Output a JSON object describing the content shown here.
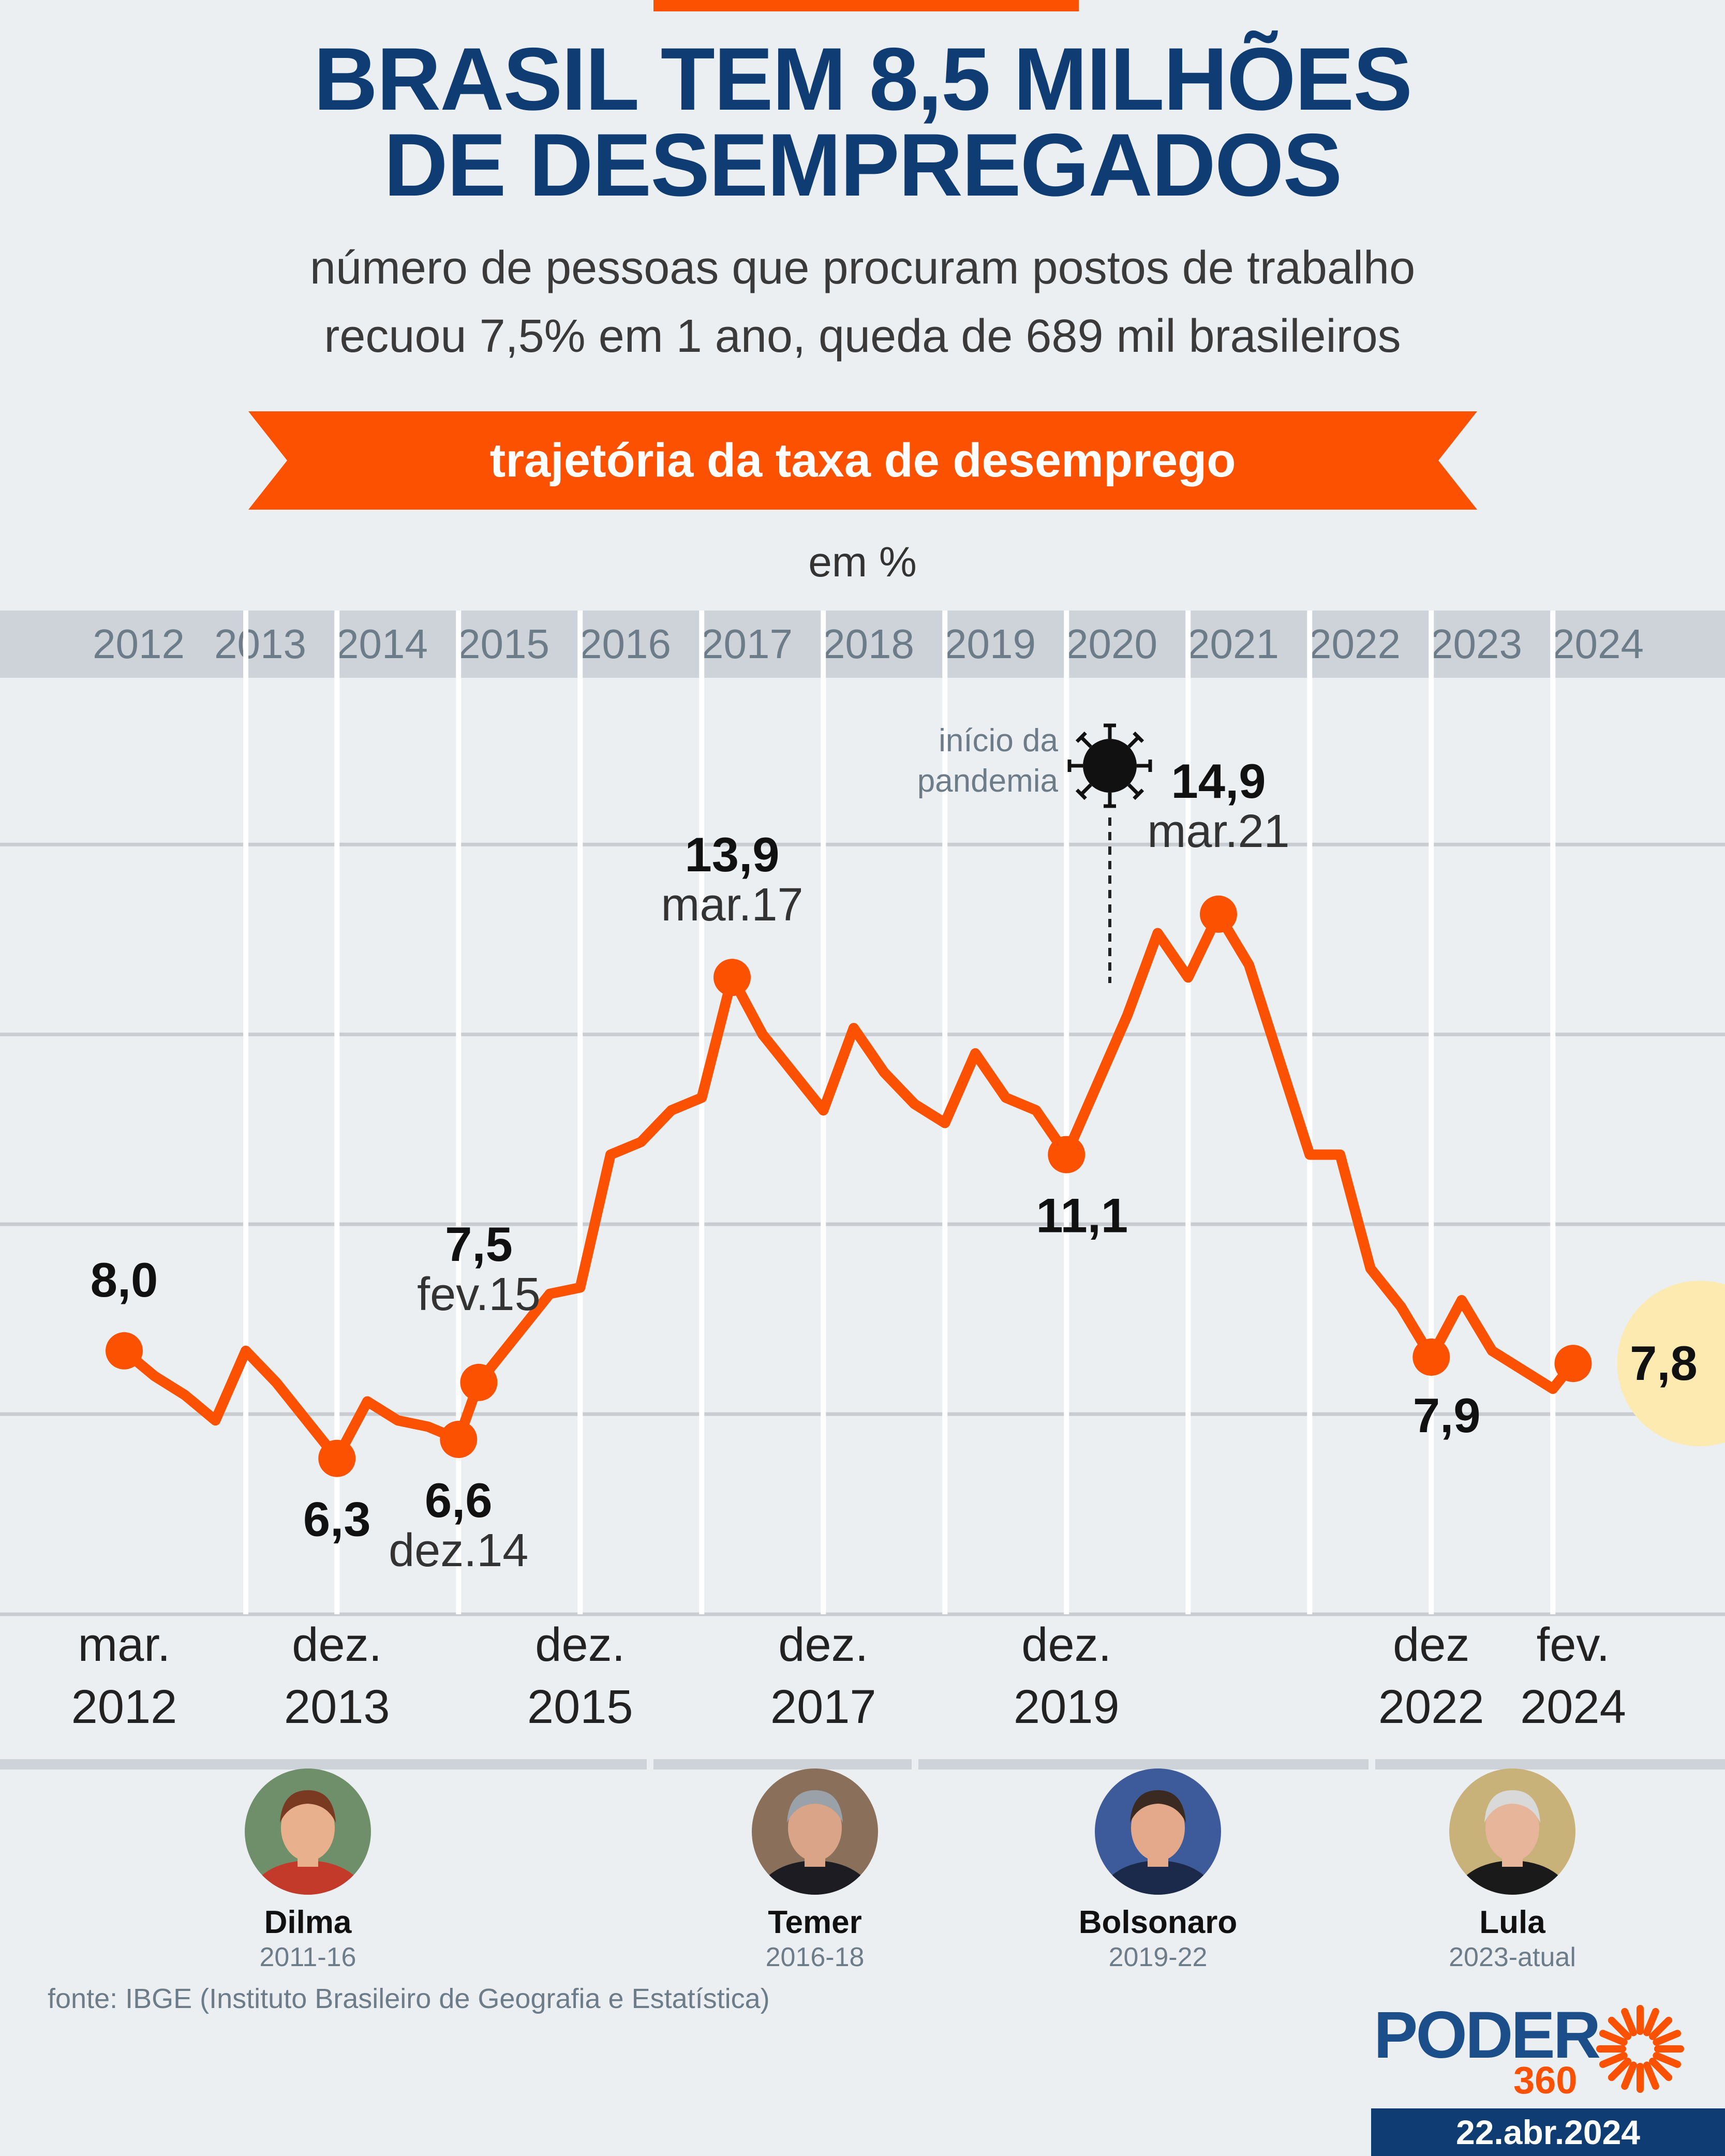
{
  "header": {
    "title_line1": "BRASIL TEM 8,5 MILHÕES",
    "title_line2": "DE DESEMPREGADOS",
    "subtitle_line1": "número de pessoas que procuram postos de trabalho",
    "subtitle_line2": "recuou 7,5% em 1 ano, queda de 689 mil brasileiros",
    "banner": "trajetória da taxa de desemprego",
    "unit": "em %"
  },
  "chart_data": {
    "type": "line",
    "title": "trajetória da taxa de desemprego",
    "ylabel": "em %",
    "ylim": [
      4,
      17
    ],
    "gridlines": [
      7,
      10,
      13,
      16
    ],
    "line_color": "#fc5100",
    "year_labels": [
      "2012",
      "2013",
      "2014",
      "2015",
      "2016",
      "2017",
      "2018",
      "2019",
      "2020",
      "2021",
      "2022",
      "2023",
      "2024"
    ],
    "x_axis_labels": [
      {
        "line1": "mar.",
        "line2": "2012"
      },
      {
        "line1": "dez.",
        "line2": "2013"
      },
      {
        "line1": "dez.",
        "line2": "2015"
      },
      {
        "line1": "dez.",
        "line2": "2017"
      },
      {
        "line1": "dez.",
        "line2": "2019"
      },
      {
        "line1": "dez",
        "line2": "2022"
      },
      {
        "line1": "fev.",
        "line2": "2024"
      }
    ],
    "series": [
      {
        "values": [
          [
            "2012-03",
            8.0
          ],
          [
            "2012-06",
            7.6
          ],
          [
            "2012-09",
            7.3
          ],
          [
            "2012-12",
            6.9
          ],
          [
            "2013-03",
            8.0
          ],
          [
            "2013-06",
            7.5
          ],
          [
            "2013-09",
            6.9
          ],
          [
            "2013-12",
            6.3
          ],
          [
            "2014-03",
            7.2
          ],
          [
            "2014-06",
            6.9
          ],
          [
            "2014-09",
            6.8
          ],
          [
            "2014-12",
            6.6
          ],
          [
            "2015-02",
            7.5
          ],
          [
            "2015-06",
            8.3
          ],
          [
            "2015-09",
            8.9
          ],
          [
            "2015-12",
            9.0
          ],
          [
            "2016-03",
            11.1
          ],
          [
            "2016-06",
            11.3
          ],
          [
            "2016-09",
            11.8
          ],
          [
            "2016-12",
            12.0
          ],
          [
            "2017-03",
            13.9
          ],
          [
            "2017-06",
            13.0
          ],
          [
            "2017-09",
            12.4
          ],
          [
            "2017-12",
            11.8
          ],
          [
            "2018-03",
            13.1
          ],
          [
            "2018-06",
            12.4
          ],
          [
            "2018-09",
            11.9
          ],
          [
            "2018-12",
            11.6
          ],
          [
            "2019-03",
            12.7
          ],
          [
            "2019-06",
            12.0
          ],
          [
            "2019-09",
            11.8
          ],
          [
            "2019-12",
            11.1
          ],
          [
            "2020-03",
            12.2
          ],
          [
            "2020-06",
            13.3
          ],
          [
            "2020-09",
            14.6
          ],
          [
            "2020-12",
            13.9
          ],
          [
            "2021-03",
            14.9
          ],
          [
            "2021-06",
            14.1
          ],
          [
            "2021-09",
            12.6
          ],
          [
            "2021-12",
            11.1
          ],
          [
            "2022-03",
            11.1
          ],
          [
            "2022-06",
            9.3
          ],
          [
            "2022-09",
            8.7
          ],
          [
            "2022-12",
            7.9
          ],
          [
            "2023-03",
            8.8
          ],
          [
            "2023-06",
            8.0
          ],
          [
            "2023-09",
            7.7
          ],
          [
            "2023-12",
            7.4
          ],
          [
            "2024-02",
            7.8
          ]
        ]
      }
    ],
    "highlights": [
      {
        "date": "2012-03",
        "value": 8.0,
        "label": "8,0",
        "date_label": ""
      },
      {
        "date": "2013-12",
        "value": 6.3,
        "label": "6,3",
        "date_label": ""
      },
      {
        "date": "2014-12",
        "value": 6.6,
        "label": "6,6",
        "date_label": "dez.14"
      },
      {
        "date": "2015-02",
        "value": 7.5,
        "label": "7,5",
        "date_label": "fev.15"
      },
      {
        "date": "2017-03",
        "value": 13.9,
        "label": "13,9",
        "date_label": "mar.17"
      },
      {
        "date": "2019-12",
        "value": 11.1,
        "label": "11,1",
        "date_label": ""
      },
      {
        "date": "2021-03",
        "value": 14.9,
        "label": "14,9",
        "date_label": "mar.21"
      },
      {
        "date": "2022-12",
        "value": 7.9,
        "label": "7,9",
        "date_label": ""
      },
      {
        "date": "2024-02",
        "value": 7.8,
        "label": "7,8",
        "date_label": ""
      }
    ],
    "annotation": {
      "line1": "início da",
      "line2": "pandemia",
      "date": "2020-03",
      "icon": "virus-icon"
    }
  },
  "presidents": [
    {
      "name": "Dilma",
      "years": "2011-16",
      "icon": "dilma-portrait"
    },
    {
      "name": "Temer",
      "years": "2016-18",
      "icon": "temer-portrait"
    },
    {
      "name": "Bolsonaro",
      "years": "2019-22",
      "icon": "bolsonaro-portrait"
    },
    {
      "name": "Lula",
      "years": "2023-atual",
      "icon": "lula-portrait"
    }
  ],
  "footer": {
    "source": "fonte: IBGE (Instituto Brasileiro de Geografia e Estatística)",
    "logo_text": "PODER",
    "logo_number": "360",
    "date": "22.abr.2024"
  },
  "colors": {
    "accent": "#fc5100",
    "navy": "#0f3d73",
    "highlight": "#fdeab0",
    "band": "#cdd3d8"
  }
}
